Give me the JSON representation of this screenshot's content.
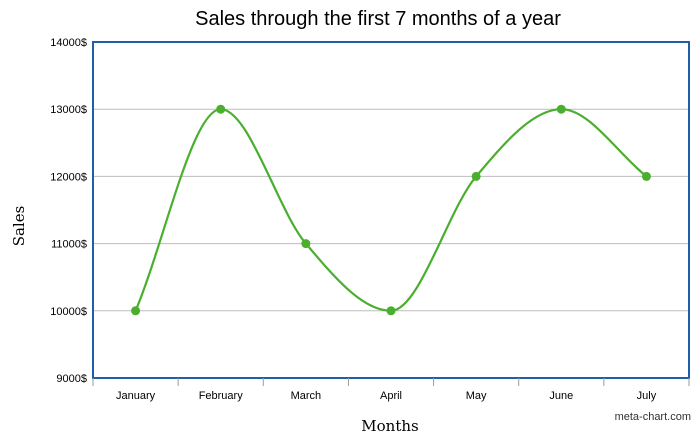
{
  "chart_data": {
    "type": "line",
    "title": "Sales through the first 7 months of a year",
    "xlabel": "Months",
    "ylabel": "Sales",
    "categories": [
      "January",
      "February",
      "March",
      "April",
      "May",
      "June",
      "July"
    ],
    "series": [
      {
        "values": [
          10000,
          13000,
          11000,
          10000,
          12000,
          13000,
          12000
        ]
      }
    ],
    "ylim": [
      9000,
      14000
    ],
    "yticks": [
      "9000$",
      "10000$",
      "11000$",
      "12000$",
      "13000$",
      "14000$"
    ],
    "grid": true,
    "smooth": true,
    "colors": {
      "line": "#4aae2f",
      "frame": "#1f5fa8",
      "grid": "#bdbdbd"
    }
  },
  "credit": "meta-chart.com"
}
